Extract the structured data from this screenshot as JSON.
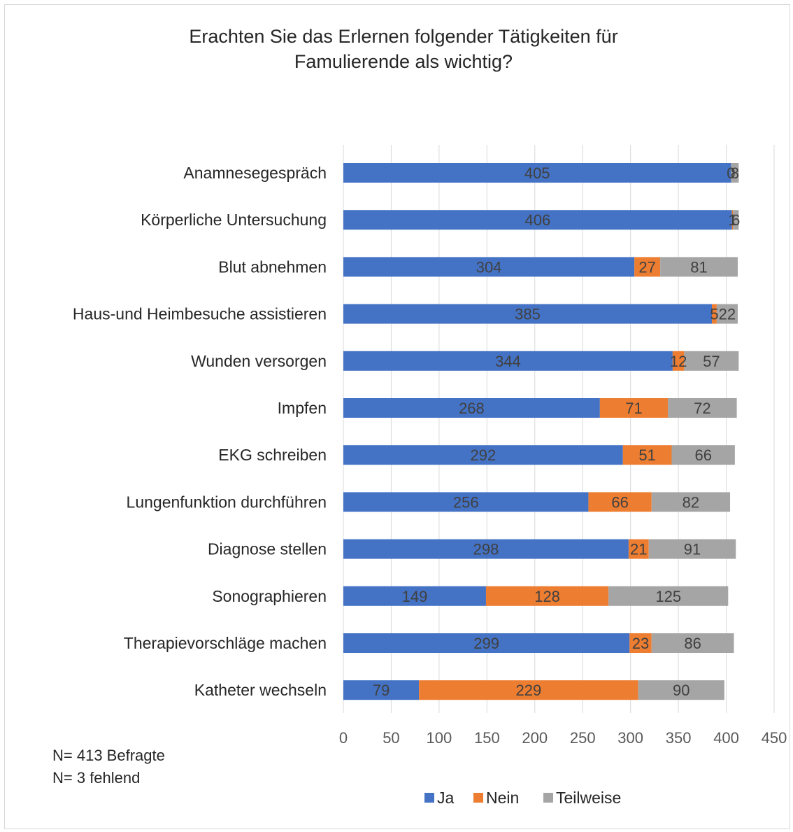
{
  "chart_data": {
    "type": "bar",
    "orientation": "horizontal",
    "stacked": true,
    "title": "Erachten Sie das Erlernen folgender Tätigkeiten für Famulierende als wichtig?",
    "title_lines": [
      "Erachten Sie das Erlernen folgender Tätigkeiten für",
      "Famulierende als wichtig?"
    ],
    "categories": [
      "Anamnesegespräch",
      "Körperliche Untersuchung",
      "Blut abnehmen",
      "Haus-und Heimbesuche assistieren",
      "Wunden versorgen",
      "Impfen",
      "EKG schreiben",
      "Lungenfunktion durchführen",
      "Diagnose stellen",
      "Sonographieren",
      "Therapievorschläge machen",
      "Katheter wechseln"
    ],
    "series": [
      {
        "name": "Ja",
        "color": "#4472c4",
        "values": [
          405,
          406,
          304,
          385,
          344,
          268,
          292,
          256,
          298,
          149,
          299,
          79
        ]
      },
      {
        "name": "Nein",
        "color": "#ed7d31",
        "values": [
          0,
          1,
          27,
          5,
          12,
          71,
          51,
          66,
          21,
          128,
          23,
          229
        ]
      },
      {
        "name": "Teilweise",
        "color": "#a5a5a5",
        "values": [
          8,
          6,
          81,
          22,
          57,
          72,
          66,
          82,
          91,
          125,
          86,
          90
        ]
      }
    ],
    "xlim": [
      0,
      450
    ],
    "x_ticks": [
      0,
      50,
      100,
      150,
      200,
      250,
      300,
      350,
      400,
      450
    ],
    "grid": true,
    "legend_position": "bottom",
    "notes": [
      "N= 413 Befragte",
      "N= 3 fehlend"
    ]
  }
}
